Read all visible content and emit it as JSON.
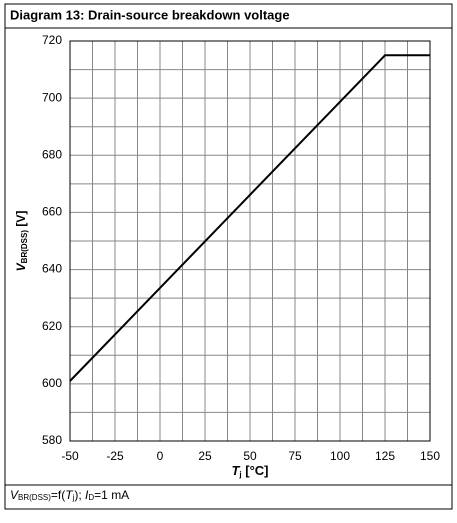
{
  "chart_data": {
    "type": "line",
    "title": "Diagram 13: Drain-source breakdown voltage",
    "y_label": {
      "symbol": "V",
      "sub": "BR(DSS)",
      "unit": " [V]"
    },
    "x_label": {
      "symbol": "T",
      "sub": "j",
      "unit": " [°C]"
    },
    "footer": [
      "V",
      "BR(DSS)",
      "=f(",
      "T",
      "j",
      "); ",
      "I",
      "D",
      "=1 mA"
    ],
    "x": [
      -50,
      125,
      150
    ],
    "series": [
      {
        "values": [
          601,
          715,
          715
        ],
        "color": "#000000"
      }
    ],
    "xlim": [
      -50,
      150
    ],
    "xticks": [
      -50,
      -25,
      0,
      25,
      50,
      75,
      100,
      125,
      150
    ],
    "ylim": [
      580,
      720
    ],
    "yticks": [
      580,
      600,
      620,
      640,
      660,
      680,
      700,
      720
    ],
    "grid": true
  }
}
